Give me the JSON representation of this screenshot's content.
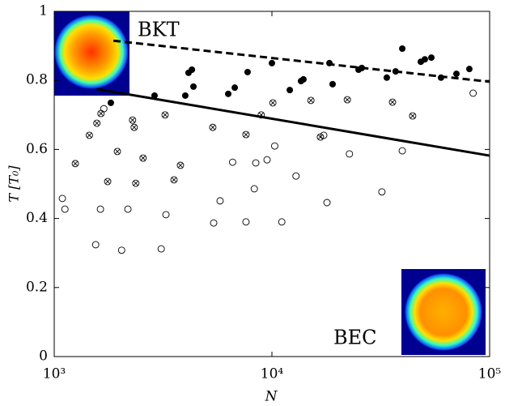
{
  "chart_data": {
    "type": "scatter",
    "xlabel": "N",
    "ylabel": "T [T₀]",
    "xlog": true,
    "xlim": [
      1000,
      100000
    ],
    "xticks": [
      {
        "value": 1000,
        "label": "10³"
      },
      {
        "value": 10000,
        "label": "10⁴"
      },
      {
        "value": 100000,
        "label": "10⁵"
      }
    ],
    "ylim": [
      0,
      1
    ],
    "yticks": [
      0,
      0.2,
      0.4,
      0.6,
      0.8,
      1
    ],
    "annotations": [
      "BKT",
      "BEC"
    ],
    "series": [
      {
        "type": "scatter",
        "marker": "filled",
        "color": "#000",
        "x": [
          1820,
          2890,
          4000,
          4140,
          4290,
          4360,
          6300,
          6750,
          7730,
          10000,
          12080,
          13600,
          13960,
          18370,
          19000,
          25000,
          25880,
          33700,
          37000,
          39700,
          48300,
          50400,
          54000,
          59800,
          70400,
          80700
        ],
        "values": [
          0.735,
          0.756,
          0.756,
          0.822,
          0.831,
          0.782,
          0.761,
          0.779,
          0.824,
          0.85,
          0.772,
          0.798,
          0.803,
          0.85,
          0.789,
          0.831,
          0.836,
          0.808,
          0.826,
          0.892,
          0.854,
          0.861,
          0.866,
          0.808,
          0.819,
          0.833
        ]
      },
      {
        "type": "scatter",
        "marker": "open",
        "color": "#000",
        "x": [
          1090,
          1120,
          1550,
          1630,
          1690,
          2040,
          2180,
          3100,
          3260,
          5400,
          5780,
          6600,
          7600,
          8300,
          8430,
          9500,
          10300,
          11100,
          12900,
          17300,
          17900,
          22700,
          32000,
          39700,
          84000
        ],
        "values": [
          0.458,
          0.427,
          0.324,
          0.427,
          0.718,
          0.308,
          0.427,
          0.312,
          0.411,
          0.387,
          0.451,
          0.563,
          0.39,
          0.486,
          0.561,
          0.57,
          0.61,
          0.39,
          0.523,
          0.641,
          0.446,
          0.587,
          0.477,
          0.596,
          0.763
        ]
      },
      {
        "type": "scatter",
        "marker": "crossed",
        "color": "#000",
        "x": [
          1250,
          1450,
          1570,
          1640,
          1760,
          1950,
          2290,
          2330,
          2370,
          2560,
          3230,
          3550,
          3800,
          5350,
          7600,
          8930,
          10100,
          15100,
          16700,
          22200,
          35800,
          44300
        ],
        "values": [
          0.559,
          0.641,
          0.676,
          0.704,
          0.507,
          0.594,
          0.685,
          0.664,
          0.502,
          0.575,
          0.7,
          0.512,
          0.554,
          0.664,
          0.643,
          0.7,
          0.735,
          0.742,
          0.636,
          0.744,
          0.737,
          0.697
        ]
      },
      {
        "type": "line",
        "style": "dashed",
        "color": "#000",
        "x": [
          1870,
          100000
        ],
        "values": [
          0.915,
          0.796
        ]
      },
      {
        "type": "line",
        "style": "solid",
        "color": "#000",
        "x": [
          1570,
          100000
        ],
        "values": [
          0.775,
          0.582
        ]
      }
    ]
  }
}
